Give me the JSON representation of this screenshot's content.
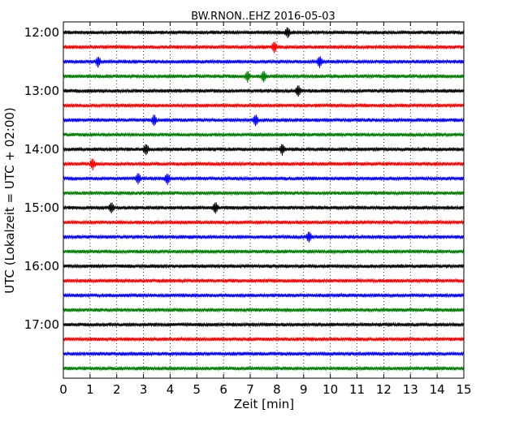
{
  "chart_data": {
    "type": "line",
    "title": "BW.RNON..EHZ 2016-05-03",
    "xlabel": "Zeit  [min]",
    "ylabel": "UTC (Lokalzeit = UTC + 02:00)",
    "xlim": [
      0,
      15
    ],
    "x_ticks": [
      "0",
      "1",
      "2",
      "3",
      "4",
      "5",
      "6",
      "7",
      "8",
      "9",
      "10",
      "11",
      "12",
      "13",
      "14",
      "15"
    ],
    "y_ticks": [
      "12:00",
      "13:00",
      "14:00",
      "15:00",
      "16:00",
      "17:00"
    ],
    "grid": "vertical dotted",
    "trace_colors": [
      "#000000",
      "#ff0000",
      "#0000ff",
      "#008000"
    ],
    "traces": [
      {
        "start": "12:00",
        "events": [
          8.4
        ]
      },
      {
        "start": "12:15",
        "events": [
          7.9
        ]
      },
      {
        "start": "12:30",
        "events": [
          1.3,
          9.6
        ]
      },
      {
        "start": "12:45",
        "events": [
          6.9,
          7.5
        ]
      },
      {
        "start": "13:00",
        "events": [
          8.8
        ]
      },
      {
        "start": "13:15",
        "events": []
      },
      {
        "start": "13:30",
        "events": [
          3.4,
          7.2
        ]
      },
      {
        "start": "13:45",
        "events": []
      },
      {
        "start": "14:00",
        "events": [
          3.1,
          8.2
        ]
      },
      {
        "start": "14:15",
        "events": [
          1.1
        ]
      },
      {
        "start": "14:30",
        "events": [
          2.8,
          3.9
        ]
      },
      {
        "start": "14:45",
        "events": []
      },
      {
        "start": "15:00",
        "events": [
          1.8,
          5.7
        ]
      },
      {
        "start": "15:15",
        "events": []
      },
      {
        "start": "15:30",
        "events": [
          9.2
        ]
      },
      {
        "start": "15:45",
        "events": []
      },
      {
        "start": "16:00",
        "events": []
      },
      {
        "start": "16:15",
        "events": []
      },
      {
        "start": "16:30",
        "events": []
      },
      {
        "start": "16:45",
        "events": []
      },
      {
        "start": "17:00",
        "events": []
      },
      {
        "start": "17:15",
        "events": []
      },
      {
        "start": "17:30",
        "events": []
      },
      {
        "start": "17:45",
        "events": []
      }
    ]
  }
}
